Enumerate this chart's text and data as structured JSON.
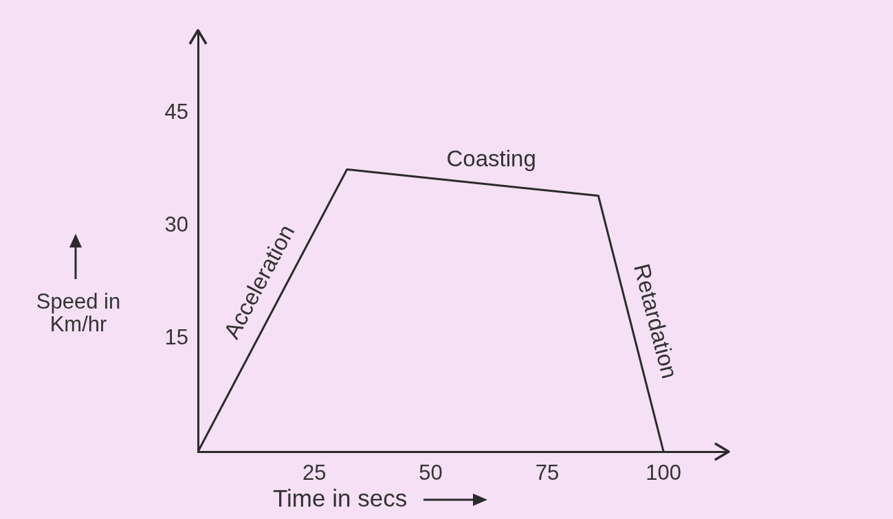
{
  "chart_data": {
    "type": "line",
    "x": [
      0,
      32,
      86,
      100
    ],
    "series": [
      {
        "color": "#2b2b2b",
        "values": [
          0,
          37.5,
          34,
          0
        ]
      }
    ],
    "xlim": [
      0,
      114
    ],
    "ylim": [
      0,
      56
    ],
    "xticks": [
      25,
      50,
      75,
      100
    ],
    "yticks": [
      15,
      30,
      45
    ],
    "xlabel": "Time in secs",
    "ylabel": "Speed in Km/hr",
    "annotations": [
      {
        "text": "Acceleration",
        "x": 18,
        "y": 21
      },
      {
        "text": "Coasting",
        "x": 63,
        "y": 35.5
      },
      {
        "text": "Retardation",
        "x": 93,
        "y": 16.5
      }
    ],
    "marker": "none",
    "line_style": "solid"
  }
}
